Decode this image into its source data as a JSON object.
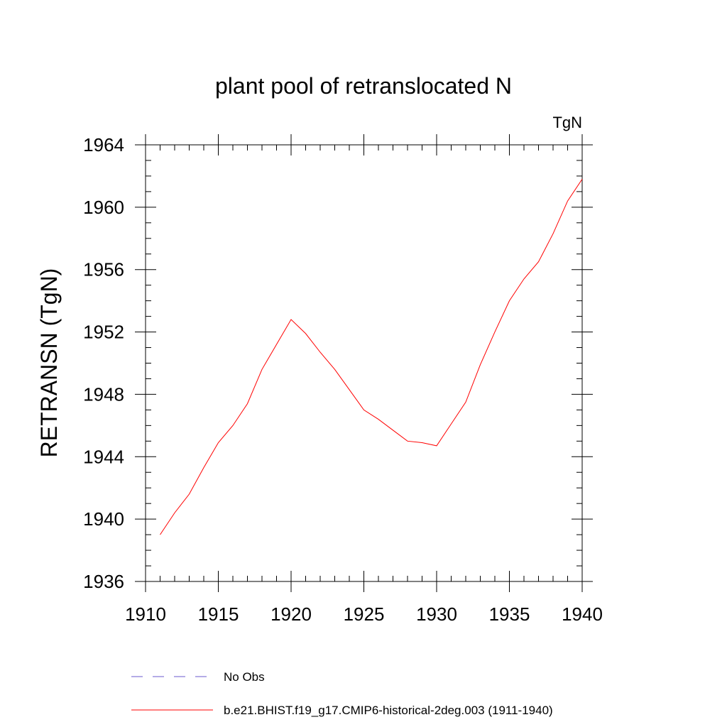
{
  "chart_data": {
    "type": "line",
    "title": "plant pool of retranslocated N",
    "units_label": "TgN",
    "ylabel": "RETRANSN  (TgN)",
    "xlabel": "",
    "xlim": [
      1910,
      1940
    ],
    "ylim": [
      1936,
      1964
    ],
    "x_ticks": [
      1910,
      1915,
      1920,
      1925,
      1930,
      1935,
      1940
    ],
    "y_ticks": [
      1936,
      1940,
      1944,
      1948,
      1952,
      1956,
      1960,
      1964
    ],
    "x_tick_labels": [
      "1910",
      "1915",
      "1920",
      "1925",
      "1930",
      "1935",
      "1940"
    ],
    "y_tick_labels": [
      "1936",
      "1940",
      "1944",
      "1948",
      "1952",
      "1956",
      "1960",
      "1964"
    ],
    "grid": false,
    "legend_position": "bottom",
    "legend": [
      {
        "label": "No Obs",
        "color": "#6a5acd",
        "style": "dashed"
      },
      {
        "label": "b.e21.BHIST.f19_g17.CMIP6-historical-2deg.003 (1911-1940)",
        "color": "#ff0000",
        "style": "solid"
      }
    ],
    "series": [
      {
        "color": "#ff0000",
        "x": [
          1911,
          1912,
          1913,
          1914,
          1915,
          1916,
          1917,
          1918,
          1919,
          1920,
          1921,
          1922,
          1923,
          1924,
          1925,
          1926,
          1927,
          1928,
          1929,
          1930,
          1931,
          1932,
          1933,
          1934,
          1935,
          1936,
          1937,
          1938,
          1939,
          1940
        ],
        "y": [
          1939.0,
          1940.4,
          1941.6,
          1943.3,
          1944.9,
          1946.0,
          1947.4,
          1949.6,
          1951.2,
          1952.8,
          1951.9,
          1950.7,
          1949.6,
          1948.3,
          1947.0,
          1946.4,
          1945.7,
          1945.0,
          1944.9,
          1944.7,
          1946.1,
          1947.5,
          1949.9,
          1952.0,
          1954.0,
          1955.4,
          1956.5,
          1958.3,
          1960.4,
          1961.8
        ]
      }
    ]
  }
}
